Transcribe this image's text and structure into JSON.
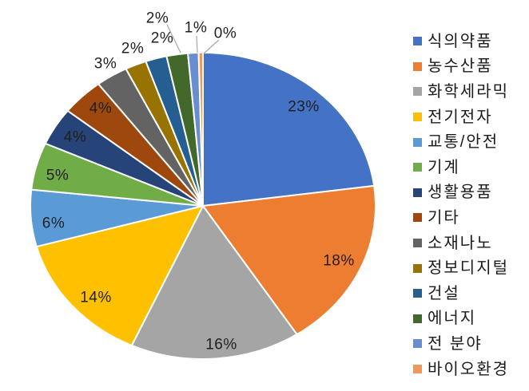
{
  "chart_data": {
    "type": "pie",
    "title": "",
    "unit": "%",
    "legend_position": "right",
    "start_angle_deg": 0,
    "direction": "clockwise",
    "background_color": "#FFFFFF",
    "slice_border_color": "#FFFFFF",
    "data_label_color": "#1F1F1F",
    "leader_line_color": "#A6A6A6",
    "slices": [
      {
        "label": "식의약품",
        "value": 23,
        "data_label": "23%",
        "color": "#4472C4",
        "label_pos": [
          380,
          134
        ],
        "label_placement": "inside"
      },
      {
        "label": "농수산품",
        "value": 18,
        "data_label": "18%",
        "color": "#ED7D31",
        "label_pos": [
          424,
          327
        ],
        "label_placement": "inside"
      },
      {
        "label": "화학세라믹",
        "value": 16,
        "data_label": "16%",
        "color": "#A5A5A5",
        "label_pos": [
          277,
          432
        ],
        "label_placement": "inside"
      },
      {
        "label": "전기전자",
        "value": 14,
        "data_label": "14%",
        "color": "#FFC000",
        "label_pos": [
          120,
          373
        ],
        "label_placement": "inside"
      },
      {
        "label": "교통/안전",
        "value": 6,
        "data_label": "6%",
        "color": "#5B9BD5",
        "label_pos": [
          67,
          280
        ],
        "label_placement": "inside"
      },
      {
        "label": "기계",
        "value": 5,
        "data_label": "5%",
        "color": "#70AD47",
        "label_pos": [
          72,
          220
        ],
        "label_placement": "inside"
      },
      {
        "label": "생활용품",
        "value": 4,
        "data_label": "4%",
        "color": "#264478",
        "label_pos": [
          94,
          172
        ],
        "label_placement": "inside"
      },
      {
        "label": "기타",
        "value": 4,
        "data_label": "4%",
        "color": "#9E480E",
        "label_pos": [
          126,
          136
        ],
        "label_placement": "inside"
      },
      {
        "label": "소재나노",
        "value": 3,
        "data_label": "3%",
        "color": "#636363",
        "label_pos": [
          132,
          80
        ],
        "label_placement": "outside"
      },
      {
        "label": "정보디지털",
        "value": 2,
        "data_label": "2%",
        "color": "#997300",
        "label_pos": [
          166,
          61
        ],
        "label_placement": "outside"
      },
      {
        "label": "건설",
        "value": 2,
        "data_label": "2%",
        "color": "#255E91",
        "label_pos": [
          203,
          48
        ],
        "label_placement": "outside"
      },
      {
        "label": "에너지",
        "value": 2,
        "data_label": "2%",
        "color": "#43682B",
        "label_pos": [
          197,
          23
        ],
        "label_placement": "outside",
        "leader": [
          [
            209,
            31
          ],
          [
            226,
            66
          ]
        ]
      },
      {
        "label": "전 분야",
        "value": 1,
        "data_label": "1%",
        "color": "#698ED0",
        "label_pos": [
          245,
          35
        ],
        "label_placement": "outside",
        "leader": [
          [
            246,
            45
          ],
          [
            247,
            66
          ]
        ]
      },
      {
        "label": "바이오환경",
        "value": 0,
        "data_label": "0%",
        "color": "#F1975A",
        "label_pos": [
          282,
          42
        ],
        "label_placement": "outside",
        "leader": [
          [
            274,
            50
          ],
          [
            255,
            67
          ]
        ]
      }
    ]
  },
  "legend": {
    "items": [
      "식의약품",
      "농수산품",
      "화학세라믹",
      "전기전자",
      "교통/안전",
      "기계",
      "생활용품",
      "기타",
      "소재나노",
      "정보디지털",
      "건설",
      "에너지",
      "전 분야",
      "바이오환경"
    ]
  }
}
